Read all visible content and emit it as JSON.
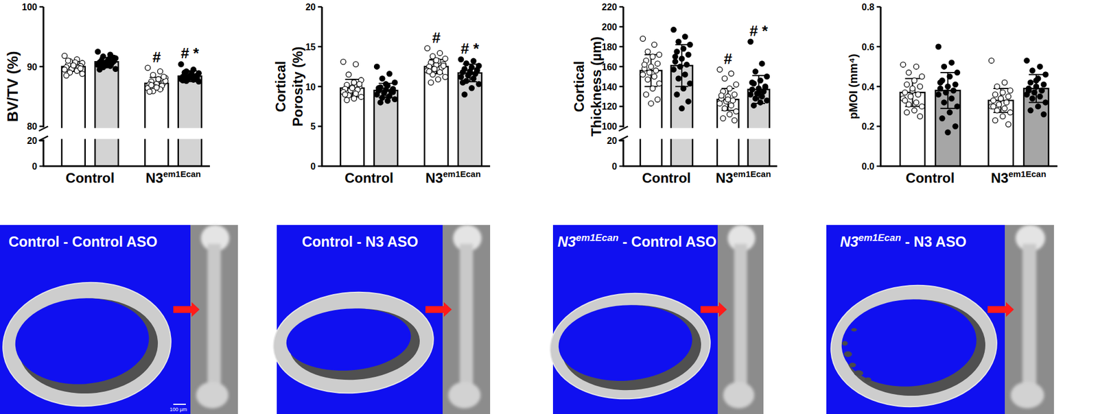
{
  "chart_data": [
    {
      "type": "bar",
      "y_label": [
        "BV/TV (%)"
      ],
      "categories": [
        "Control",
        "N3em1Ecan"
      ],
      "ylim": [
        0,
        100
      ],
      "axis_break": [
        20,
        80
      ],
      "yticks": [
        0,
        20,
        80,
        90,
        100
      ],
      "series": [
        {
          "color": "#ffffff",
          "marker": "open-circle",
          "values": [
            90.0,
            87.2
          ],
          "errors": [
            0.8,
            1.0
          ],
          "annotations": [
            null,
            "#"
          ],
          "points": [
            [
              91.8,
              91.2,
              90.9,
              90.6,
              90.4,
              90.3,
              90.1,
              90.0,
              89.9,
              89.8,
              89.6,
              89.5,
              89.3,
              89.0,
              88.8,
              90.7,
              91.0,
              89.7,
              90.2,
              88.5
            ],
            [
              89.8,
              89.2,
              88.6,
              88.1,
              87.8,
              87.5,
              87.3,
              87.1,
              87.0,
              86.8,
              86.6,
              86.4,
              86.2,
              85.9,
              87.6,
              87.9,
              86.9,
              88.3,
              86.5,
              85.8
            ]
          ]
        },
        {
          "color": "#d3d3d3",
          "marker": "filled-circle",
          "values": [
            90.8,
            88.4
          ],
          "errors": [
            0.7,
            0.9
          ],
          "annotations": [
            null,
            "# *"
          ],
          "points": [
            [
              92.5,
              92.0,
              91.7,
              91.4,
              91.2,
              91.0,
              90.9,
              90.8,
              90.7,
              90.6,
              90.5,
              90.3,
              90.1,
              89.9,
              89.6,
              91.1,
              90.4,
              91.5,
              90.2,
              89.5
            ],
            [
              90.4,
              89.5,
              89.2,
              88.9,
              88.7,
              88.6,
              88.5,
              88.4,
              88.3,
              88.2,
              88.0,
              87.9,
              87.8,
              87.6,
              87.5,
              88.8,
              89.0,
              88.1,
              88.45,
              87.7
            ]
          ]
        }
      ]
    },
    {
      "type": "bar",
      "y_label": [
        "Cortical",
        "Porosity (%)"
      ],
      "categories": [
        "Control",
        "N3em1Ecan"
      ],
      "ylim": [
        0,
        20
      ],
      "yticks": [
        0,
        5,
        10,
        15,
        20
      ],
      "series": [
        {
          "color": "#ffffff",
          "marker": "open-circle",
          "values": [
            9.8,
            12.5
          ],
          "errors": [
            1.1,
            0.9
          ],
          "annotations": [
            null,
            "#"
          ],
          "points": [
            [
              13.1,
              12.8,
              11.5,
              10.8,
              10.5,
              10.2,
              10.0,
              9.9,
              9.7,
              9.6,
              9.5,
              9.3,
              9.1,
              8.9,
              8.7,
              8.5,
              8.3,
              10.3,
              9.8,
              9.0
            ],
            [
              14.8,
              14.2,
              13.8,
              13.5,
              13.2,
              13.0,
              12.8,
              12.7,
              12.5,
              12.4,
              12.2,
              12.0,
              11.8,
              11.5,
              11.2,
              10.9,
              10.5,
              12.6,
              13.3,
              11.9
            ]
          ]
        },
        {
          "color": "#d3d3d3",
          "marker": "filled-circle",
          "values": [
            9.5,
            11.7
          ],
          "errors": [
            0.9,
            1.1
          ],
          "annotations": [
            null,
            "# *"
          ],
          "points": [
            [
              12.5,
              11.6,
              11.0,
              10.5,
              10.1,
              9.9,
              9.7,
              9.6,
              9.5,
              9.4,
              9.2,
              9.0,
              8.8,
              8.6,
              8.4,
              8.2,
              8.0,
              9.3,
              10.3,
              9.8
            ],
            [
              13.4,
              13.2,
              12.9,
              12.6,
              12.4,
              12.2,
              12.0,
              11.9,
              11.8,
              11.6,
              11.4,
              11.2,
              11.0,
              10.7,
              10.3,
              9.8,
              9.0,
              12.1,
              11.7,
              10.5
            ]
          ]
        }
      ]
    },
    {
      "type": "bar",
      "y_label": [
        "Cortical",
        "Thickness (µm)"
      ],
      "categories": [
        "Control",
        "N3em1Ecan"
      ],
      "ylim": [
        0,
        220
      ],
      "axis_break": [
        20,
        100
      ],
      "yticks": [
        0,
        20,
        100,
        120,
        140,
        160,
        180,
        200,
        220
      ],
      "series": [
        {
          "color": "#ffffff",
          "marker": "open-circle",
          "values": [
            156,
            127
          ],
          "errors": [
            16,
            11
          ],
          "annotations": [
            null,
            "#"
          ],
          "points": [
            [
              188,
              182,
              175,
              172,
              170,
              166,
              163,
              160,
              158,
              156,
              154,
              152,
              150,
              147,
              143,
              138,
              132,
              127,
              123,
              162
            ],
            [
              157,
              153,
              148,
              142,
              138,
              135,
              132,
              130,
              128,
              126,
              125,
              123,
              121,
              118,
              115,
              112,
              108,
              106,
              127,
              131
            ]
          ]
        },
        {
          "color": "#d3d3d3",
          "marker": "filled-circle",
          "values": [
            161,
            137
          ],
          "errors": [
            21,
            14
          ],
          "annotations": [
            null,
            "# *"
          ],
          "points": [
            [
              197,
              190,
              185,
              182,
              178,
              175,
              172,
              168,
              165,
              162,
              160,
              157,
              152,
              148,
              143,
              138,
              132,
              125,
              118,
              170
            ],
            [
              185,
              163,
              155,
              150,
              146,
              143,
              140,
              138,
              137,
              135,
              133,
              132,
              130,
              128,
              126,
              124,
              121,
              139,
              134,
              144
            ]
          ]
        }
      ]
    },
    {
      "type": "bar",
      "y_label": [
        "pMOI (mm⁴)"
      ],
      "categories": [
        "Control",
        "N3em1Ecan"
      ],
      "ylim": [
        0,
        0.8
      ],
      "yticks": [
        {
          "value": 0,
          "label": "0.0"
        },
        0.2,
        0.4,
        0.6,
        0.8
      ],
      "series": [
        {
          "color": "#ffffff",
          "marker": "open-circle",
          "values": [
            0.37,
            0.33
          ],
          "errors": [
            0.07,
            0.06
          ],
          "points": [
            [
              0.51,
              0.5,
              0.47,
              0.45,
              0.43,
              0.41,
              0.4,
              0.38,
              0.37,
              0.36,
              0.35,
              0.34,
              0.32,
              0.31,
              0.3,
              0.28,
              0.27,
              0.25,
              0.39,
              0.33
            ],
            [
              0.53,
              0.42,
              0.4,
              0.38,
              0.37,
              0.36,
              0.35,
              0.34,
              0.33,
              0.32,
              0.31,
              0.3,
              0.29,
              0.28,
              0.27,
              0.25,
              0.23,
              0.21,
              0.34,
              0.3
            ]
          ]
        },
        {
          "color": "#a6a6a6",
          "marker": "filled-circle",
          "values": [
            0.38,
            0.39
          ],
          "errors": [
            0.09,
            0.07
          ],
          "points": [
            [
              0.6,
              0.52,
              0.5,
              0.47,
              0.45,
              0.43,
              0.41,
              0.4,
              0.39,
              0.38,
              0.37,
              0.36,
              0.34,
              0.32,
              0.3,
              0.27,
              0.24,
              0.2,
              0.17,
              0.42
            ],
            [
              0.53,
              0.5,
              0.48,
              0.46,
              0.44,
              0.42,
              0.41,
              0.4,
              0.39,
              0.38,
              0.37,
              0.36,
              0.35,
              0.34,
              0.32,
              0.3,
              0.28,
              0.26,
              0.43,
              0.38
            ]
          ]
        }
      ]
    }
  ],
  "images": [
    {
      "label": "Control - Control ASO",
      "scale_bar": "100 µm"
    },
    {
      "label": "Control - N3 ASO"
    },
    {
      "label": "N3em1Ecan - Control ASO"
    },
    {
      "label": "N3em1Ecan - N3 ASO"
    }
  ]
}
